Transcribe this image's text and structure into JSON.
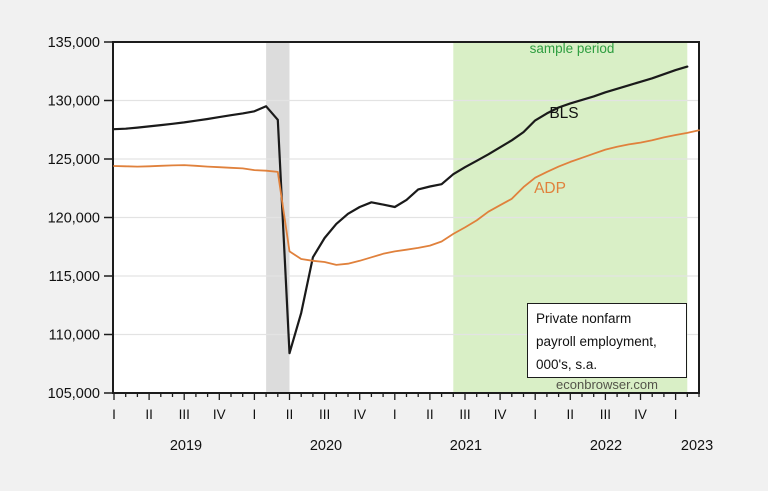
{
  "page": {
    "background_color": "#f1f1f1",
    "plot_background_color": "#ffffff"
  },
  "chart_data": {
    "type": "line",
    "title_box": {
      "lines": [
        "Private nonfarm",
        "payroll employment,",
        "000's, s.a."
      ]
    },
    "watermark": "econbrowser.com",
    "ylim": [
      105000,
      135000
    ],
    "ytick_step": 5000,
    "ytick_labels": [
      "135,000",
      "130,000",
      "125,000",
      "120,000",
      "115,000",
      "110,000",
      "105,000"
    ],
    "x_start": "2019-01",
    "x_end": "2023-03",
    "quarter_labels": [
      "I",
      "II",
      "III",
      "IV"
    ],
    "year_labels": [
      {
        "text": "2019",
        "month_index": 6.15
      },
      {
        "text": "2020",
        "month_index": 18.12
      },
      {
        "text": "2021",
        "month_index": 30.08
      },
      {
        "text": "2022",
        "month_index": 42.05
      },
      {
        "text": "2023",
        "month_index": 49.83
      }
    ],
    "series": [
      {
        "name": "BLS",
        "color": "#1a1a1a",
        "stroke_width": 2.2,
        "start_month_index": 0,
        "values": [
          127550,
          127590,
          127680,
          127790,
          127900,
          128010,
          128130,
          128270,
          128420,
          128580,
          128740,
          128900,
          129080,
          129500,
          128350,
          108400,
          111850,
          116600,
          118250,
          119450,
          120320,
          120900,
          121300,
          121100,
          120900,
          121500,
          122400,
          122650,
          122850,
          123700,
          124300,
          124850,
          125400,
          126000,
          126600,
          127300,
          128300,
          128900,
          129400,
          129750,
          130050,
          130350,
          130700,
          131000,
          131300,
          131600,
          131900,
          132250,
          132600,
          132900
        ]
      },
      {
        "name": "ADP",
        "color": "#e0813c",
        "stroke_width": 1.8,
        "start_month_index": 0,
        "values": [
          124400,
          124380,
          124350,
          124380,
          124420,
          124450,
          124480,
          124420,
          124350,
          124300,
          124250,
          124200,
          124050,
          124000,
          123900,
          117100,
          116450,
          116300,
          116200,
          115950,
          116050,
          116300,
          116600,
          116900,
          117100,
          117250,
          117400,
          117600,
          117950,
          118600,
          119150,
          119750,
          120500,
          121050,
          121600,
          122600,
          123400,
          123900,
          124350,
          124750,
          125100,
          125450,
          125800,
          126050,
          126250,
          126400,
          126600,
          126850,
          127050,
          127230,
          127450
        ]
      }
    ],
    "bands": [
      {
        "name": "recession-band",
        "color": "#dcdcdc",
        "from_month": 13,
        "to_month": 15
      },
      {
        "name": "sample-period-band",
        "color": "#d9efc6",
        "from_month": 29,
        "to_month": 49
      }
    ],
    "annotations": [
      {
        "id": "sample-period-label",
        "text": "sample period",
        "color": "#2e9e40",
        "x": 572,
        "y": 53,
        "size": 13.5
      },
      {
        "id": "bls-label",
        "text": "BLS",
        "color": "#111111",
        "x": 564,
        "y": 118,
        "size": 15.5
      },
      {
        "id": "adp-label",
        "text": "ADP",
        "color": "#e0813c",
        "x": 550,
        "y": 193,
        "size": 15.5
      }
    ],
    "colors": {
      "axis": "#1c1c1c",
      "grid": "#e3e3e3",
      "tick_text": "#111111"
    }
  }
}
